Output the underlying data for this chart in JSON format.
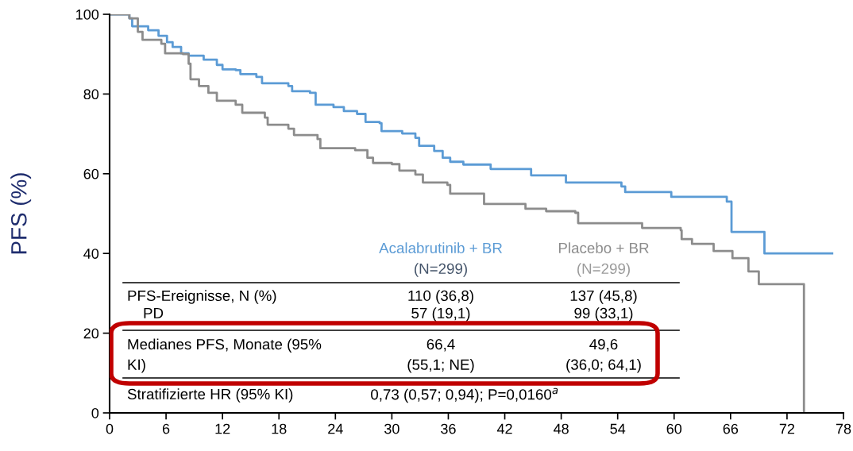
{
  "chart_data": {
    "type": "step",
    "ylabel": "PFS (%)",
    "xlim": [
      0,
      78
    ],
    "xticks": [
      0,
      6,
      12,
      18,
      24,
      30,
      36,
      42,
      48,
      54,
      60,
      66,
      72,
      78
    ],
    "ylim": [
      0,
      100
    ],
    "yticks": [
      0,
      20,
      40,
      60,
      80,
      100
    ],
    "grid": false,
    "legend": false,
    "series": [
      {
        "name": "Acalabrutinib + BR",
        "color": "#5b9bd5",
        "x": [
          0,
          2.1,
          2.4,
          4.1,
          5.2,
          6.1,
          6.7,
          7.6,
          8.4,
          10,
          11.4,
          12,
          13.4,
          13.9,
          15.6,
          16.2,
          19,
          19.4,
          21.3,
          21.9,
          23.8,
          24.9,
          26.3,
          27.2,
          28.7,
          28.9,
          31.1,
          32.5,
          32.9,
          34.5,
          35.4,
          36.2,
          37.6,
          40.5,
          44.8,
          48.5,
          54.4,
          54.8,
          59.7,
          65.6,
          66.1,
          69.6,
          76.8
        ],
        "values": [
          100,
          99,
          97,
          96,
          94.6,
          93,
          91.8,
          90.2,
          89.6,
          88.6,
          87.3,
          86.2,
          86,
          85,
          84.3,
          82.7,
          82,
          80.7,
          80.3,
          77.3,
          76.7,
          75.7,
          75,
          73,
          72.7,
          70.7,
          70.1,
          69,
          67,
          65.7,
          64,
          63,
          62.3,
          61.2,
          59.6,
          57.8,
          56.8,
          55.4,
          54.2,
          53,
          45.4,
          40,
          40
        ]
      },
      {
        "name": "Placebo + BR",
        "color": "#8c8c8c",
        "x": [
          0,
          2.1,
          3,
          3.5,
          5.5,
          5.9,
          7.8,
          8.4,
          8.6,
          9.5,
          10.5,
          11.4,
          13.4,
          14.1,
          16.5,
          16.8,
          19,
          19.6,
          22.1,
          22.4,
          26.1,
          27.4,
          28,
          30,
          30.8,
          32.5,
          33.3,
          35.9,
          36.2,
          39.8,
          44.2,
          46.4,
          49.5,
          49.8,
          56.6,
          60.7,
          60.8,
          61.9,
          64.2,
          66.2,
          67.9,
          69,
          73.8,
          73.8
        ],
        "values": [
          100,
          99,
          95.6,
          93.6,
          92.6,
          90.2,
          90,
          87.6,
          83.7,
          82,
          80.3,
          78.3,
          77.3,
          75.3,
          74.1,
          72.3,
          71.3,
          69.7,
          68.7,
          66.4,
          65.9,
          64,
          62.7,
          62.4,
          60.8,
          59.8,
          57.8,
          57.2,
          55,
          52.4,
          51.2,
          50.6,
          50.2,
          47.6,
          46.4,
          45.8,
          43.6,
          42.4,
          40.6,
          38.8,
          35.5,
          32.3,
          32.3,
          0
        ]
      }
    ],
    "annotations": [
      "(N=299)",
      "(N=299)",
      "PFS-Ereignisse, N (%)",
      "110 (36,8)",
      "137 (45,8)",
      "PD",
      "57 (19,1)",
      "99 (33,1)",
      "Medianes PFS, Monate (95%\nKI)",
      "66,4\n(55,1; NE)",
      "49,6\n(36,0; 64,1)",
      "Stratifizierte HR (95% KI)",
      "0,73 (0,57; 0,94); P=0,0160$^{a}$"
    ]
  }
}
